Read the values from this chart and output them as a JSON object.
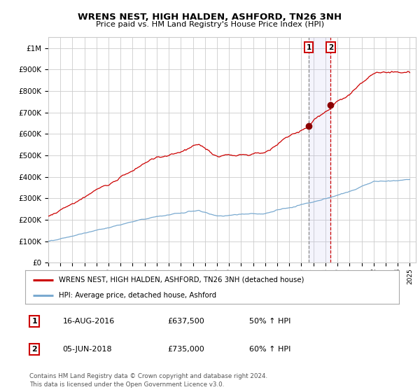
{
  "title": "WRENS NEST, HIGH HALDEN, ASHFORD, TN26 3NH",
  "subtitle": "Price paid vs. HM Land Registry's House Price Index (HPI)",
  "legend_label_red": "WRENS NEST, HIGH HALDEN, ASHFORD, TN26 3NH (detached house)",
  "legend_label_blue": "HPI: Average price, detached house, Ashford",
  "transaction1_date": "16-AUG-2016",
  "transaction1_price_str": "£637,500",
  "transaction1_price": 637500,
  "transaction1_pct": "50% ↑ HPI",
  "transaction2_date": "05-JUN-2018",
  "transaction2_price_str": "£735,000",
  "transaction2_price": 735000,
  "transaction2_pct": "60% ↑ HPI",
  "footer": "Contains HM Land Registry data © Crown copyright and database right 2024.\nThis data is licensed under the Open Government Licence v3.0.",
  "red_color": "#cc0000",
  "blue_color": "#7aaad0",
  "background_color": "#ffffff",
  "grid_color": "#cccccc",
  "ylim": [
    0,
    1050000
  ],
  "yticks": [
    0,
    100000,
    200000,
    300000,
    400000,
    500000,
    600000,
    700000,
    800000,
    900000,
    1000000
  ],
  "ytick_labels": [
    "£0",
    "£100K",
    "£200K",
    "£300K",
    "£400K",
    "£500K",
    "£600K",
    "£700K",
    "£800K",
    "£900K",
    "£1M"
  ],
  "transaction1_year": 2016.625,
  "transaction2_year": 2018.43
}
